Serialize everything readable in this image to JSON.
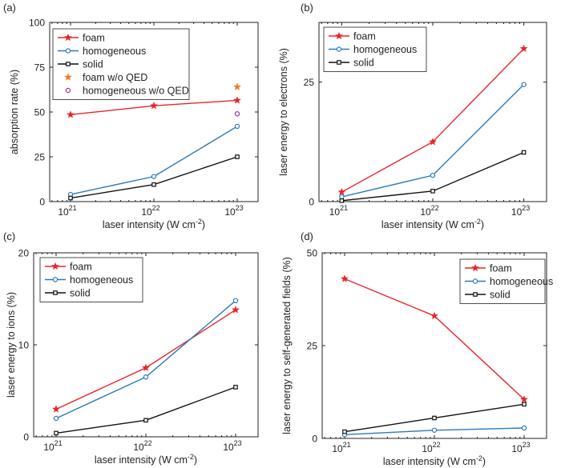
{
  "colors": {
    "foam": "#e8262a",
    "homogeneous": "#2a7ab8",
    "solid": "#111111",
    "foam_wo_qed": "#f07c22",
    "homogeneous_wo_qed": "#8d3a9e"
  },
  "chart_data": [
    {
      "type": "line",
      "panel_label": "(a)",
      "ylabel": "absorption rate (%)",
      "xlabel": "laser intensity (W cm",
      "xlabel_sup": "-2",
      "xlabel_close": ")",
      "x_scale": "log",
      "x": [
        1e+21,
        1e+22,
        1e+23
      ],
      "xticks": [
        {
          "base": "10",
          "exp": "21"
        },
        {
          "base": "10",
          "exp": "22"
        },
        {
          "base": "10",
          "exp": "23"
        }
      ],
      "xlim_log": [
        20.75,
        23.25
      ],
      "ylim": [
        0,
        100
      ],
      "yticks": [
        "0",
        "25",
        "50",
        "75",
        "100"
      ],
      "yticks_values": [
        0,
        25,
        50,
        75,
        100
      ],
      "legend_position": "top-left",
      "series": [
        {
          "key": "foam",
          "name": "foam",
          "marker": "star",
          "values": [
            48.5,
            53.5,
            56.5
          ]
        },
        {
          "key": "homogeneous",
          "name": "homogeneous",
          "marker": "circle",
          "values": [
            4.0,
            14.0,
            42.0
          ]
        },
        {
          "key": "solid",
          "name": "solid",
          "marker": "square",
          "values": [
            2.0,
            9.5,
            25.0
          ]
        }
      ],
      "extra_points": [
        {
          "key": "foam_wo_qed",
          "name": "foam w/o QED",
          "marker": "star",
          "x": 1e+23,
          "y": 64.0
        },
        {
          "key": "homogeneous_wo_qed",
          "name": "homogeneous w/o QED",
          "marker": "circle",
          "x": 1e+23,
          "y": 49.0
        }
      ]
    },
    {
      "type": "line",
      "panel_label": "(b)",
      "ylabel": "laser energy to electrons (%)",
      "xlabel": "laser intensity (W cm",
      "xlabel_sup": "-2",
      "xlabel_close": ")",
      "x_scale": "log",
      "x": [
        1e+21,
        1e+22,
        1e+23
      ],
      "xticks": [
        {
          "base": "10",
          "exp": "21"
        },
        {
          "base": "10",
          "exp": "22"
        },
        {
          "base": "10",
          "exp": "23"
        }
      ],
      "xlim_log": [
        20.75,
        23.25
      ],
      "ylim": [
        0,
        37.5
      ],
      "yticks": [
        "0",
        "25"
      ],
      "yticks_values": [
        0,
        25
      ],
      "legend_position": "top-left",
      "series": [
        {
          "key": "foam",
          "name": "foam",
          "marker": "star",
          "values": [
            2.0,
            12.5,
            32.0
          ]
        },
        {
          "key": "homogeneous",
          "name": "homogeneous",
          "marker": "circle",
          "values": [
            1.0,
            5.5,
            24.5
          ]
        },
        {
          "key": "solid",
          "name": "solid",
          "marker": "square",
          "values": [
            0.2,
            2.2,
            10.3
          ]
        }
      ],
      "extra_points": []
    },
    {
      "type": "line",
      "panel_label": "(c)",
      "ylabel": "laser energy to ions (%)",
      "xlabel": "laser intensity (W cm",
      "xlabel_sup": "-2",
      "xlabel_close": ")",
      "x_scale": "log",
      "x": [
        1e+21,
        1e+22,
        1e+23
      ],
      "xticks": [
        {
          "base": "10",
          "exp": "21"
        },
        {
          "base": "10",
          "exp": "22"
        },
        {
          "base": "10",
          "exp": "23"
        }
      ],
      "xlim_log": [
        20.75,
        23.25
      ],
      "ylim": [
        0,
        20
      ],
      "yticks": [
        "0",
        "10",
        "20"
      ],
      "yticks_values": [
        0,
        10,
        20
      ],
      "legend_position": "top-left",
      "series": [
        {
          "key": "foam",
          "name": "foam",
          "marker": "star",
          "values": [
            3.0,
            7.5,
            13.8
          ]
        },
        {
          "key": "homogeneous",
          "name": "homogeneous",
          "marker": "circle",
          "values": [
            2.0,
            6.5,
            14.8
          ]
        },
        {
          "key": "solid",
          "name": "solid",
          "marker": "square",
          "values": [
            0.4,
            1.8,
            5.4
          ]
        }
      ],
      "extra_points": []
    },
    {
      "type": "line",
      "panel_label": "(d)",
      "ylabel": "laser energy to self-generated fields (%)",
      "xlabel": "laser intensity (W cm",
      "xlabel_sup": "-2",
      "xlabel_close": ")",
      "x_scale": "log",
      "x": [
        1e+21,
        1e+22,
        1e+23
      ],
      "xticks": [
        {
          "base": "10",
          "exp": "21"
        },
        {
          "base": "10",
          "exp": "22"
        },
        {
          "base": "10",
          "exp": "23"
        }
      ],
      "xlim_log": [
        20.75,
        23.25
      ],
      "ylim": [
        0,
        50
      ],
      "yticks": [
        "0",
        "25",
        "50"
      ],
      "yticks_values": [
        0,
        25,
        50
      ],
      "legend_position": "top-right",
      "series": [
        {
          "key": "foam",
          "name": "foam",
          "marker": "star",
          "values": [
            43.0,
            33.0,
            10.5
          ]
        },
        {
          "key": "homogeneous",
          "name": "homogeneous",
          "marker": "circle",
          "values": [
            1.0,
            2.2,
            2.8
          ]
        },
        {
          "key": "solid",
          "name": "solid",
          "marker": "square",
          "values": [
            1.8,
            5.5,
            9.2
          ]
        }
      ],
      "extra_points": []
    }
  ]
}
